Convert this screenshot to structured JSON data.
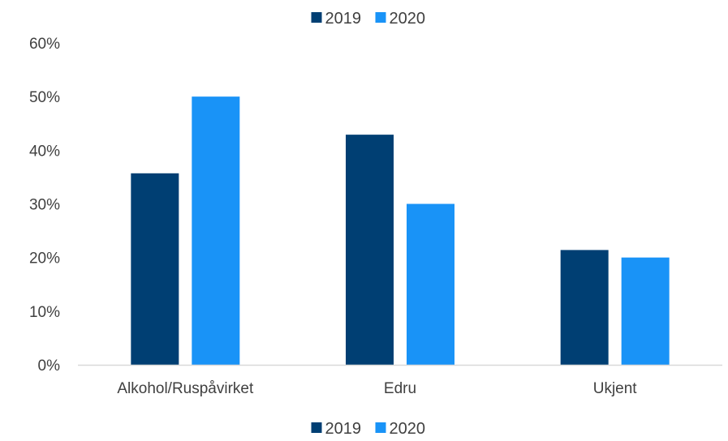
{
  "chart_data": {
    "type": "bar",
    "categories": [
      "Alkohol/Ruspåvirket",
      "Edru",
      "Ukjent"
    ],
    "series": [
      {
        "name": "2019",
        "values": [
          35.7,
          42.9,
          21.4
        ],
        "color": "#003f73"
      },
      {
        "name": "2020",
        "values": [
          50,
          30,
          20
        ],
        "color": "#1993f7"
      }
    ],
    "ylim": [
      0,
      60
    ],
    "yticks": [
      0,
      10,
      20,
      30,
      40,
      50,
      60
    ],
    "ytick_labels": [
      "0%",
      "10%",
      "20%",
      "30%",
      "40%",
      "50%",
      "60%"
    ],
    "grid": false,
    "legend": {
      "placement": "top-center and bottom-center",
      "entries": [
        "2019",
        "2020"
      ]
    },
    "title": "",
    "xlabel": "",
    "ylabel": ""
  }
}
